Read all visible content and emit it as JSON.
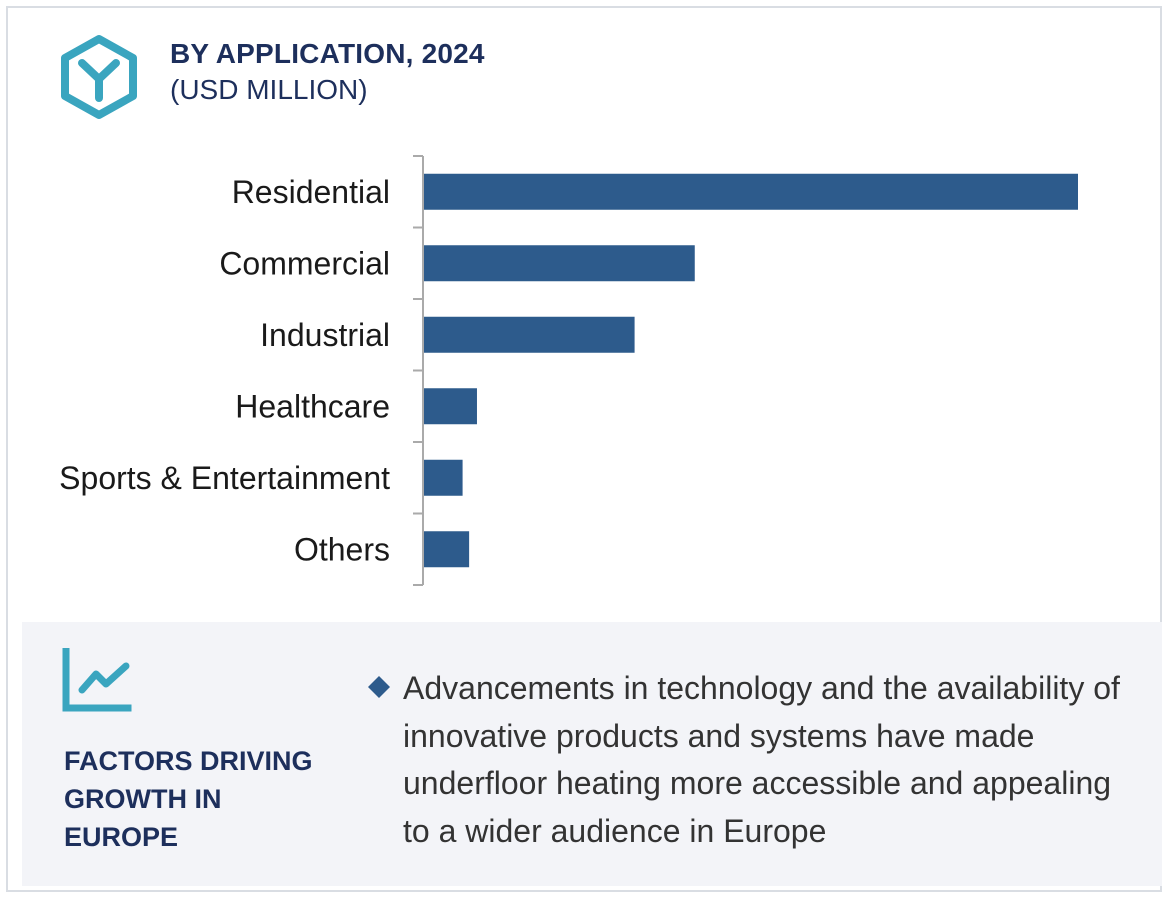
{
  "header": {
    "icon": "hexagon-y-icon",
    "title": "BY APPLICATION, 2024",
    "subtitle": "(USD MILLION)"
  },
  "colors": {
    "bar": "#2d5b8c",
    "title": "#1d2f5c",
    "icon_teal": "#3aa5bf",
    "footer_bg": "#f3f4f8",
    "axis": "#aaaaaa"
  },
  "chart_data": {
    "type": "bar",
    "orientation": "horizontal",
    "title": "BY APPLICATION, 2024",
    "subtitle": "(USD MILLION)",
    "categories": [
      "Residential",
      "Commercial",
      "Industrial",
      "Healthcare",
      "Sports & Entertainment",
      "Others"
    ],
    "values": [
      100,
      41.4,
      32.2,
      8.1,
      5.9,
      6.9
    ],
    "xlim": [
      0,
      100
    ],
    "grid": false,
    "legend": "none",
    "value_axis_labels": false
  },
  "factors": {
    "icon": "trend-line-icon",
    "heading_lines": [
      "FACTORS DRIVING",
      "GROWTH IN",
      "EUROPE"
    ],
    "bullet_icon": "diamond-bullet-icon",
    "text": "Advancements in technology and the availability of innovative products and systems have made underfloor heating more accessible and appealing to a wider audience in Europe"
  }
}
